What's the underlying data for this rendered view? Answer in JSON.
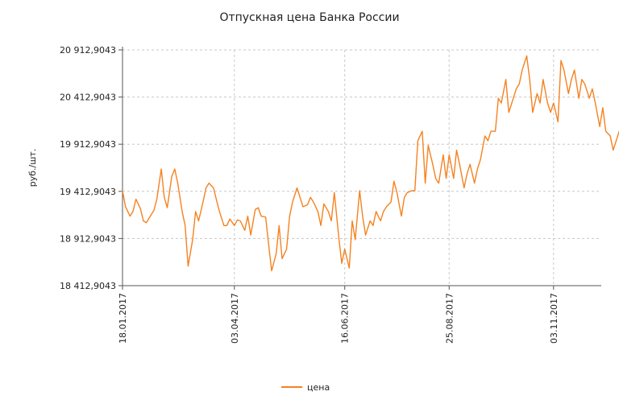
{
  "colors": {
    "series": "#f58220",
    "grid": "#c8c8c8",
    "axis": "#555555"
  },
  "chart_data": {
    "type": "line",
    "title": "Отпускная цена Банка России",
    "xlabel": "",
    "ylabel": "руб./шт.",
    "x_tick_labels": [
      "18.01.2017",
      "03.04.2017",
      "16.06.2017",
      "25.08.2017",
      "03.11.2017"
    ],
    "y_tick_labels": [
      "18 412,9043",
      "18 912,9043",
      "19 412,9043",
      "19 912,9043",
      "20 412,9043",
      "20 912,9043"
    ],
    "y_ticks": [
      18412.9043,
      18912.9043,
      19412.9043,
      19912.9043,
      20412.9043,
      20912.9043
    ],
    "ylim": [
      18412.9043,
      20912.9043
    ],
    "x_range": [
      "18.01.2017",
      "05.12.2017"
    ],
    "grid": true,
    "legend": "bottom-center",
    "series": [
      {
        "name": "цена",
        "points": [
          [
            "18.01.2017",
            19420
          ],
          [
            "20.01.2017",
            19250
          ],
          [
            "23.01.2017",
            19150
          ],
          [
            "25.01.2017",
            19200
          ],
          [
            "27.01.2017",
            19330
          ],
          [
            "30.01.2017",
            19230
          ],
          [
            "01.02.2017",
            19100
          ],
          [
            "03.02.2017",
            19080
          ],
          [
            "06.02.2017",
            19160
          ],
          [
            "08.02.2017",
            19210
          ],
          [
            "10.02.2017",
            19330
          ],
          [
            "13.02.2017",
            19650
          ],
          [
            "15.02.2017",
            19350
          ],
          [
            "17.02.2017",
            19240
          ],
          [
            "20.02.2017",
            19570
          ],
          [
            "22.02.2017",
            19650
          ],
          [
            "24.02.2017",
            19500
          ],
          [
            "27.02.2017",
            19200
          ],
          [
            "01.03.2017",
            19050
          ],
          [
            "03.03.2017",
            18620
          ],
          [
            "06.03.2017",
            18900
          ],
          [
            "08.03.2017",
            19200
          ],
          [
            "10.03.2017",
            19100
          ],
          [
            "13.03.2017",
            19300
          ],
          [
            "15.03.2017",
            19450
          ],
          [
            "17.03.2017",
            19500
          ],
          [
            "20.03.2017",
            19450
          ],
          [
            "22.03.2017",
            19320
          ],
          [
            "24.03.2017",
            19200
          ],
          [
            "27.03.2017",
            19050
          ],
          [
            "29.03.2017",
            19050
          ],
          [
            "31.03.2017",
            19120
          ],
          [
            "03.04.2017",
            19050
          ],
          [
            "05.04.2017",
            19110
          ],
          [
            "07.04.2017",
            19100
          ],
          [
            "10.04.2017",
            19000
          ],
          [
            "12.04.2017",
            19150
          ],
          [
            "14.04.2017",
            18950
          ],
          [
            "17.04.2017",
            19220
          ],
          [
            "19.04.2017",
            19240
          ],
          [
            "21.04.2017",
            19150
          ],
          [
            "24.04.2017",
            19140
          ],
          [
            "26.04.2017",
            18850
          ],
          [
            "28.04.2017",
            18570
          ],
          [
            "01.05.2017",
            18750
          ],
          [
            "03.05.2017",
            19050
          ],
          [
            "05.05.2017",
            18700
          ],
          [
            "08.05.2017",
            18800
          ],
          [
            "10.05.2017",
            19150
          ],
          [
            "12.05.2017",
            19300
          ],
          [
            "15.05.2017",
            19450
          ],
          [
            "17.05.2017",
            19350
          ],
          [
            "19.05.2017",
            19250
          ],
          [
            "22.05.2017",
            19270
          ],
          [
            "24.05.2017",
            19350
          ],
          [
            "26.05.2017",
            19300
          ],
          [
            "29.05.2017",
            19200
          ],
          [
            "31.05.2017",
            19050
          ],
          [
            "02.06.2017",
            19280
          ],
          [
            "05.06.2017",
            19200
          ],
          [
            "07.06.2017",
            19100
          ],
          [
            "09.06.2017",
            19400
          ],
          [
            "12.06.2017",
            18930
          ],
          [
            "14.06.2017",
            18650
          ],
          [
            "16.06.2017",
            18800
          ],
          [
            "19.06.2017",
            18600
          ],
          [
            "21.06.2017",
            19100
          ],
          [
            "23.06.2017",
            18900
          ],
          [
            "26.06.2017",
            19420
          ],
          [
            "28.06.2017",
            19150
          ],
          [
            "30.06.2017",
            18950
          ],
          [
            "03.07.2017",
            19100
          ],
          [
            "05.07.2017",
            19050
          ],
          [
            "07.07.2017",
            19200
          ],
          [
            "10.07.2017",
            19100
          ],
          [
            "12.07.2017",
            19200
          ],
          [
            "14.07.2017",
            19250
          ],
          [
            "17.07.2017",
            19300
          ],
          [
            "19.07.2017",
            19520
          ],
          [
            "21.07.2017",
            19400
          ],
          [
            "24.07.2017",
            19150
          ],
          [
            "26.07.2017",
            19350
          ],
          [
            "28.07.2017",
            19400
          ],
          [
            "31.07.2017",
            19420
          ],
          [
            "02.08.2017",
            19420
          ],
          [
            "04.08.2017",
            19950
          ],
          [
            "07.08.2017",
            20050
          ],
          [
            "09.08.2017",
            19500
          ],
          [
            "11.08.2017",
            19900
          ],
          [
            "14.08.2017",
            19700
          ],
          [
            "16.08.2017",
            19550
          ],
          [
            "18.08.2017",
            19500
          ],
          [
            "21.08.2017",
            19800
          ],
          [
            "23.08.2017",
            19550
          ],
          [
            "25.08.2017",
            19800
          ],
          [
            "28.08.2017",
            19550
          ],
          [
            "30.08.2017",
            19850
          ],
          [
            "01.09.2017",
            19700
          ],
          [
            "04.09.2017",
            19450
          ],
          [
            "06.09.2017",
            19600
          ],
          [
            "08.09.2017",
            19700
          ],
          [
            "11.09.2017",
            19500
          ],
          [
            "13.09.2017",
            19650
          ],
          [
            "15.09.2017",
            19750
          ],
          [
            "18.09.2017",
            20000
          ],
          [
            "20.09.2017",
            19950
          ],
          [
            "22.09.2017",
            20050
          ],
          [
            "25.09.2017",
            20050
          ],
          [
            "27.09.2017",
            20400
          ],
          [
            "29.09.2017",
            20350
          ],
          [
            "02.10.2017",
            20600
          ],
          [
            "04.10.2017",
            20250
          ],
          [
            "06.10.2017",
            20350
          ],
          [
            "09.10.2017",
            20500
          ],
          [
            "11.10.2017",
            20550
          ],
          [
            "13.10.2017",
            20700
          ],
          [
            "16.10.2017",
            20850
          ],
          [
            "18.10.2017",
            20600
          ],
          [
            "20.10.2017",
            20250
          ],
          [
            "23.10.2017",
            20450
          ],
          [
            "25.10.2017",
            20350
          ],
          [
            "27.10.2017",
            20600
          ],
          [
            "30.10.2017",
            20350
          ],
          [
            "01.11.2017",
            20250
          ],
          [
            "03.11.2017",
            20350
          ],
          [
            "06.11.2017",
            20150
          ],
          [
            "08.11.2017",
            20800
          ],
          [
            "10.11.2017",
            20700
          ],
          [
            "13.11.2017",
            20450
          ],
          [
            "15.11.2017",
            20600
          ],
          [
            "17.11.2017",
            20700
          ],
          [
            "20.11.2017",
            20400
          ],
          [
            "22.11.2017",
            20600
          ],
          [
            "24.11.2017",
            20550
          ],
          [
            "27.11.2017",
            20400
          ],
          [
            "29.11.2017",
            20500
          ],
          [
            "01.12.2017",
            20350
          ],
          [
            "04.12.2017",
            20100
          ],
          [
            "06.12.2017",
            20300
          ],
          [
            "08.12.2017",
            20050
          ],
          [
            "11.12.2017",
            20000
          ],
          [
            "13.12.2017",
            19850
          ],
          [
            "15.12.2017",
            19950
          ],
          [
            "18.12.2017",
            20100
          ],
          [
            "20.12.2017",
            19900
          ],
          [
            "22.12.2017",
            20000
          ]
        ]
      }
    ]
  }
}
